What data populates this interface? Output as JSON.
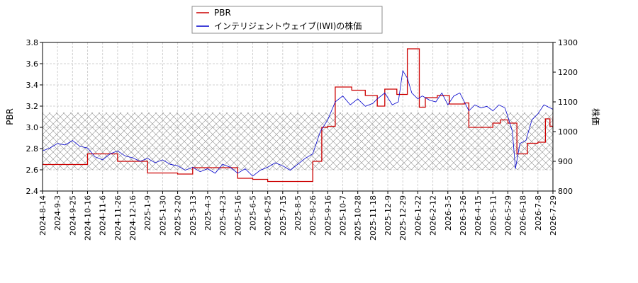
{
  "chart_data": {
    "type": "line",
    "x_tick_labels": [
      "2024-8-14",
      "2024-9-3",
      "2024-9-25",
      "2024-10-16",
      "2024-11-6",
      "2024-11-26",
      "2024-12-16",
      "2025-1-9",
      "2025-1-30",
      "2025-2-20",
      "2025-3-13",
      "2025-4-3",
      "2025-4-23",
      "2025-5-16",
      "2025-6-5",
      "2025-6-25",
      "2025-7-15",
      "2025-8-5",
      "2025-8-26",
      "2025-9-16",
      "2025-10-7",
      "2025-10-28",
      "2025-11-18",
      "2025-12-9",
      "2025-12-29",
      "2026-1-22",
      "2026-2-12",
      "2026-3-5",
      "2026-3-26",
      "2026-4-15",
      "2026-5-11",
      "2026-5-29",
      "2026-6-18",
      "2026-7-8",
      "2026-7-29"
    ],
    "xlabel": "",
    "left_axis": {
      "label": "PBR",
      "ticks": [
        "2.4",
        "2.6",
        "2.8",
        "3.0",
        "3.2",
        "3.4",
        "3.6",
        "3.8"
      ],
      "ylim": [
        2.4,
        3.8
      ]
    },
    "right_axis": {
      "label": "株価",
      "ticks": [
        "800",
        "900",
        "1000",
        "1100",
        "1200",
        "1300"
      ],
      "ylim": [
        800,
        1300
      ]
    },
    "hatched_band_pbr": [
      2.6,
      3.14
    ],
    "grid": true,
    "legend_position": "top-center",
    "series": [
      {
        "name": "PBR",
        "axis": "left",
        "color": "#cc0000",
        "points": [
          [
            0,
            2.65
          ],
          [
            2,
            2.65
          ],
          [
            3,
            2.75
          ],
          [
            4,
            2.75
          ],
          [
            5,
            2.68
          ],
          [
            6,
            2.68
          ],
          [
            7,
            2.57
          ],
          [
            8,
            2.57
          ],
          [
            9,
            2.56
          ],
          [
            10,
            2.62
          ],
          [
            12,
            2.62
          ],
          [
            13,
            2.52
          ],
          [
            14,
            2.51
          ],
          [
            15,
            2.49
          ],
          [
            17,
            2.49
          ],
          [
            18,
            2.68
          ],
          [
            18.6,
            3.0
          ],
          [
            19,
            3.01
          ],
          [
            19.5,
            3.38
          ],
          [
            20,
            3.38
          ],
          [
            20.6,
            3.35
          ],
          [
            21,
            3.35
          ],
          [
            21.5,
            3.3
          ],
          [
            22,
            3.3
          ],
          [
            22.3,
            3.2
          ],
          [
            22.8,
            3.36
          ],
          [
            23.3,
            3.36
          ],
          [
            23.6,
            3.31
          ],
          [
            24,
            3.31
          ],
          [
            24.3,
            3.74
          ],
          [
            24.7,
            3.74
          ],
          [
            25.1,
            3.19
          ],
          [
            25.5,
            3.28
          ],
          [
            26.1,
            3.28
          ],
          [
            26.3,
            3.3
          ],
          [
            26.8,
            3.3
          ],
          [
            27.1,
            3.22
          ],
          [
            27.4,
            3.22
          ],
          [
            28.1,
            3.23
          ],
          [
            28.4,
            3.0
          ],
          [
            29.3,
            3.0
          ],
          [
            30,
            3.04
          ],
          [
            30.5,
            3.07
          ],
          [
            31,
            3.04
          ],
          [
            31.3,
            3.04
          ],
          [
            31.6,
            2.75
          ],
          [
            32,
            2.75
          ],
          [
            32.3,
            2.85
          ],
          [
            33,
            2.86
          ],
          [
            33.5,
            3.08
          ],
          [
            33.8,
            3.01
          ],
          [
            34,
            3.1
          ],
          [
            34.5,
            3.08
          ],
          [
            35.2,
            3.12
          ],
          [
            35.6,
            3.2
          ],
          [
            36,
            3.18
          ],
          [
            36.5,
            3.18
          ],
          [
            36.8,
            3.24
          ],
          [
            37.5,
            3.23
          ],
          [
            37.9,
            3.12
          ],
          [
            38.2,
            3.12
          ],
          [
            38.6,
            3.09
          ],
          [
            39,
            3.1
          ],
          [
            39.5,
            3.08
          ],
          [
            40,
            3.09
          ],
          [
            40.2,
            3.15
          ],
          [
            40.5,
            2.92
          ],
          [
            40.9,
            2.98
          ],
          [
            41.3,
            2.96
          ],
          [
            42,
            2.95
          ],
          [
            42.6,
            2.98
          ],
          [
            43.2,
            2.99
          ],
          [
            43.4,
            3.04
          ],
          [
            44,
            3.04
          ],
          [
            44.3,
            2.9
          ],
          [
            44.7,
            2.86
          ],
          [
            45.3,
            2.87
          ],
          [
            45.9,
            2.88
          ],
          [
            46,
            2.99
          ],
          [
            46.5,
            2.78
          ],
          [
            47,
            2.69
          ],
          [
            47.6,
            2.72
          ],
          [
            48,
            2.72
          ],
          [
            48.3,
            2.74
          ],
          [
            49,
            2.74
          ],
          [
            49.8,
            2.75
          ],
          [
            50,
            2.78
          ],
          [
            50.6,
            2.79
          ],
          [
            51.3,
            2.81
          ],
          [
            51.6,
            2.7
          ],
          [
            52,
            2.61
          ],
          [
            52.4,
            2.59
          ],
          [
            52.8,
            2.63
          ],
          [
            53.2,
            2.69
          ],
          [
            53.6,
            2.72
          ],
          [
            54,
            2.76
          ],
          [
            54.4,
            2.69
          ],
          [
            55,
            2.69
          ],
          [
            55.4,
            2.61
          ],
          [
            55.8,
            2.62
          ],
          [
            57,
            2.62
          ],
          [
            58.3,
            2.62
          ],
          [
            58.5,
            2.91
          ],
          [
            59.1,
            2.91
          ],
          [
            59.3,
            2.57
          ],
          [
            60.5,
            2.57
          ],
          [
            61,
            2.57
          ],
          [
            62,
            2.57
          ],
          [
            62.4,
            2.57
          ],
          [
            63.3,
            2.57
          ],
          [
            63.5,
            2.72
          ],
          [
            64,
            2.72
          ]
        ]
      },
      {
        "name": "インテリジェントウェイブ(IWI)の株価",
        "axis": "right",
        "color": "#0000cc",
        "points": [
          [
            0,
            935
          ],
          [
            0.5,
            945
          ],
          [
            1,
            960
          ],
          [
            1.5,
            955
          ],
          [
            2,
            970
          ],
          [
            2.5,
            950
          ],
          [
            3,
            945
          ],
          [
            3.5,
            915
          ],
          [
            4,
            905
          ],
          [
            4.5,
            925
          ],
          [
            5,
            935
          ],
          [
            5.5,
            918
          ],
          [
            6,
            912
          ],
          [
            6.5,
            900
          ],
          [
            7,
            910
          ],
          [
            7.5,
            895
          ],
          [
            8,
            905
          ],
          [
            8.5,
            890
          ],
          [
            9,
            885
          ],
          [
            9.5,
            870
          ],
          [
            10,
            880
          ],
          [
            10.5,
            865
          ],
          [
            11,
            875
          ],
          [
            11.5,
            860
          ],
          [
            12,
            890
          ],
          [
            12.5,
            880
          ],
          [
            13,
            860
          ],
          [
            13.5,
            875
          ],
          [
            14,
            850
          ],
          [
            14.5,
            870
          ],
          [
            15,
            880
          ],
          [
            15.5,
            895
          ],
          [
            16,
            885
          ],
          [
            16.5,
            870
          ],
          [
            17,
            890
          ],
          [
            17.5,
            910
          ],
          [
            18,
            925
          ],
          [
            18.5,
            1000
          ],
          [
            19,
            1040
          ],
          [
            19.5,
            1100
          ],
          [
            20,
            1120
          ],
          [
            20.5,
            1090
          ],
          [
            21,
            1110
          ],
          [
            21.5,
            1085
          ],
          [
            22,
            1095
          ],
          [
            22.3,
            1110
          ],
          [
            22.8,
            1130
          ],
          [
            23.3,
            1090
          ],
          [
            23.7,
            1100
          ],
          [
            24,
            1205
          ],
          [
            24.3,
            1180
          ],
          [
            24.6,
            1130
          ],
          [
            25,
            1110
          ],
          [
            25.3,
            1120
          ],
          [
            25.8,
            1105
          ],
          [
            26.2,
            1100
          ],
          [
            26.6,
            1130
          ],
          [
            27,
            1090
          ],
          [
            27.4,
            1120
          ],
          [
            27.8,
            1130
          ],
          [
            28.1,
            1100
          ],
          [
            28.4,
            1070
          ],
          [
            28.8,
            1090
          ],
          [
            29.2,
            1080
          ],
          [
            29.6,
            1085
          ],
          [
            30,
            1070
          ],
          [
            30.4,
            1090
          ],
          [
            30.8,
            1080
          ],
          [
            31,
            1050
          ],
          [
            31.3,
            1000
          ],
          [
            31.5,
            875
          ],
          [
            31.8,
            960
          ],
          [
            32.2,
            970
          ],
          [
            32.6,
            1040
          ],
          [
            33,
            1060
          ],
          [
            33.4,
            1090
          ],
          [
            33.8,
            1080
          ],
          [
            34.2,
            1070
          ],
          [
            34.6,
            1090
          ],
          [
            35,
            1110
          ],
          [
            35.4,
            1130
          ],
          [
            35.8,
            1100
          ],
          [
            36.2,
            1140
          ],
          [
            36.6,
            1130
          ],
          [
            37,
            1140
          ],
          [
            37.4,
            1120
          ],
          [
            37.8,
            1110
          ],
          [
            38.2,
            1100
          ],
          [
            38.6,
            1090
          ],
          [
            39,
            1085
          ],
          [
            39.4,
            1100
          ],
          [
            39.8,
            1110
          ],
          [
            40.2,
            1120
          ],
          [
            40.5,
            1030
          ],
          [
            40.8,
            1080
          ],
          [
            41.2,
            1090
          ],
          [
            41.6,
            1080
          ],
          [
            42,
            1090
          ],
          [
            42.4,
            1080
          ],
          [
            42.8,
            1085
          ],
          [
            43.2,
            1080
          ],
          [
            43.6,
            1100
          ],
          [
            44,
            1080
          ],
          [
            44.4,
            1060
          ],
          [
            44.8,
            1050
          ],
          [
            45.2,
            1045
          ],
          [
            45.6,
            1035
          ],
          [
            46,
            1010
          ],
          [
            46.4,
            990
          ],
          [
            46.8,
            960
          ],
          [
            47.2,
            945
          ],
          [
            47.6,
            950
          ],
          [
            48,
            955
          ],
          [
            48.4,
            960
          ],
          [
            48.8,
            945
          ],
          [
            49.2,
            960
          ],
          [
            49.6,
            975
          ],
          [
            50,
            980
          ],
          [
            50.4,
            990
          ],
          [
            50.8,
            995
          ],
          [
            51.2,
            980
          ],
          [
            51.6,
            960
          ],
          [
            52,
            955
          ],
          [
            52.4,
            960
          ],
          [
            52.8,
            975
          ],
          [
            53.2,
            1000
          ],
          [
            53.6,
            990
          ],
          [
            54,
            1010
          ],
          [
            54.4,
            990
          ],
          [
            54.8,
            975
          ],
          [
            55.2,
            980
          ],
          [
            55.6,
            975
          ],
          [
            56,
            990
          ],
          [
            56.4,
            985
          ],
          [
            56.8,
            990
          ],
          [
            57.2,
            985
          ],
          [
            57.6,
            980
          ],
          [
            58,
            1000
          ],
          [
            58.2,
            1095
          ],
          [
            58.5,
            920
          ],
          [
            58.9,
            935
          ],
          [
            59.3,
            940
          ],
          [
            59.7,
            930
          ],
          [
            60.1,
            940
          ],
          [
            60.5,
            945
          ],
          [
            60.9,
            935
          ],
          [
            61.3,
            935
          ],
          [
            61.7,
            945
          ],
          [
            62.1,
            950
          ],
          [
            62.5,
            960
          ],
          [
            62.9,
            990
          ],
          [
            63.3,
            980
          ],
          [
            63.6,
            1225
          ],
          [
            64,
            1240
          ]
        ]
      }
    ]
  }
}
